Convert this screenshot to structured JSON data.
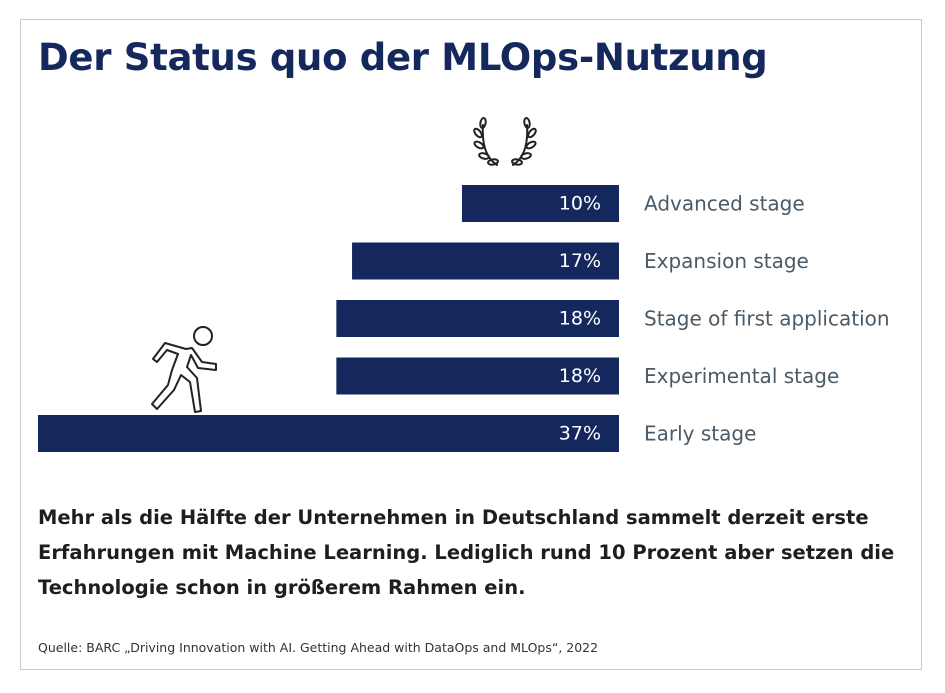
{
  "title": "Der Status quo der MLOps-Nutzung",
  "chart_data": {
    "type": "bar",
    "orientation": "horizontal",
    "categories": [
      "Advanced stage",
      "Expansion stage",
      "Stage of first application",
      "Experimental stage",
      "Early stage"
    ],
    "values": [
      10,
      17,
      18,
      18,
      37
    ],
    "value_labels": [
      "10%",
      "17%",
      "18%",
      "18%",
      "37%"
    ],
    "unit": "%",
    "bar_color": "#15285e",
    "grid": false,
    "legend": "none"
  },
  "icons": {
    "laurel": "laurel-wreath-icon",
    "runner": "running-person-icon"
  },
  "summary": "Mehr als die Hälfte der Unternehmen in Deutschland sammelt derzeit erste Erfahrungen mit Machine Learning. Lediglich rund 10 Prozent aber setzen die Technologie schon in größerem Rahmen ein.",
  "source": "Quelle: BARC „Driving Innovation with AI. Getting Ahead with DataOps and MLOps“, 2022"
}
